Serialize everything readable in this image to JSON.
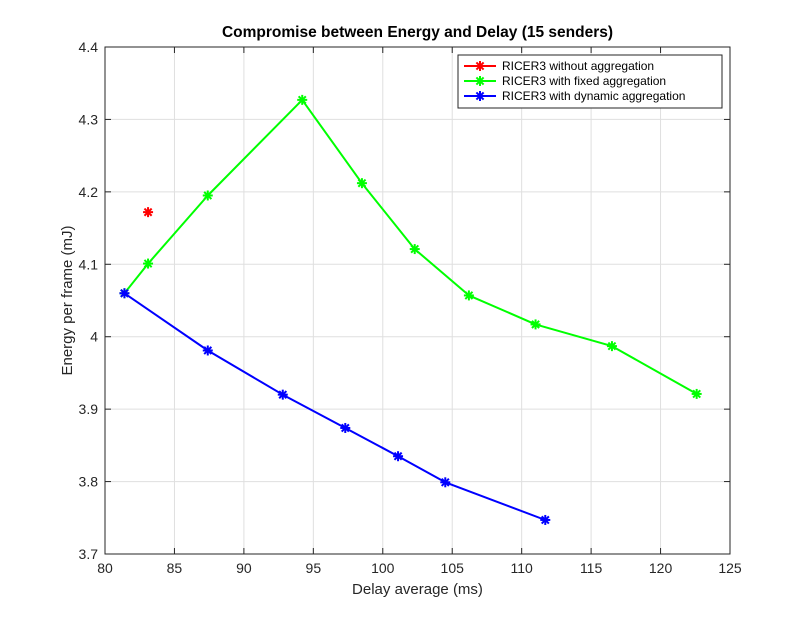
{
  "chart_data": {
    "type": "line",
    "title": "Compromise between Energy and Delay (15 senders)",
    "xlabel": "Delay average (ms)",
    "ylabel": "Energy per frame (mJ)",
    "xlim": [
      80,
      125
    ],
    "ylim": [
      3.7,
      4.4
    ],
    "xticks": [
      80,
      85,
      90,
      95,
      100,
      105,
      110,
      115,
      120,
      125
    ],
    "yticks": [
      3.7,
      3.8,
      3.9,
      4.0,
      4.1,
      4.2,
      4.3,
      4.4
    ],
    "xtick_labels": [
      "80",
      "85",
      "90",
      "95",
      "100",
      "105",
      "110",
      "115",
      "120",
      "125"
    ],
    "ytick_labels": [
      "3.7",
      "3.8",
      "3.9",
      "4",
      "4.1",
      "4.2",
      "4.3",
      "4.4"
    ],
    "grid": true,
    "legend_position": "top-right",
    "series": [
      {
        "name": "RICER3 without aggregation",
        "color": "#ff0000",
        "marker": "asterisk",
        "x": [
          83.1
        ],
        "y": [
          4.172
        ]
      },
      {
        "name": "RICER3 with fixed aggregation",
        "color": "#00ff00",
        "marker": "asterisk",
        "x": [
          81.4,
          83.1,
          87.4,
          94.2,
          98.5,
          102.3,
          106.2,
          111.0,
          116.5,
          122.6
        ],
        "y": [
          4.06,
          4.101,
          4.195,
          4.327,
          4.212,
          4.121,
          4.057,
          4.017,
          3.987,
          3.921
        ]
      },
      {
        "name": "RICER3 with dynamic aggregation",
        "color": "#0000ff",
        "marker": "asterisk",
        "x": [
          81.4,
          87.4,
          92.8,
          97.3,
          101.1,
          104.5,
          111.7
        ],
        "y": [
          4.06,
          3.981,
          3.92,
          3.874,
          3.835,
          3.799,
          3.747
        ]
      }
    ]
  }
}
